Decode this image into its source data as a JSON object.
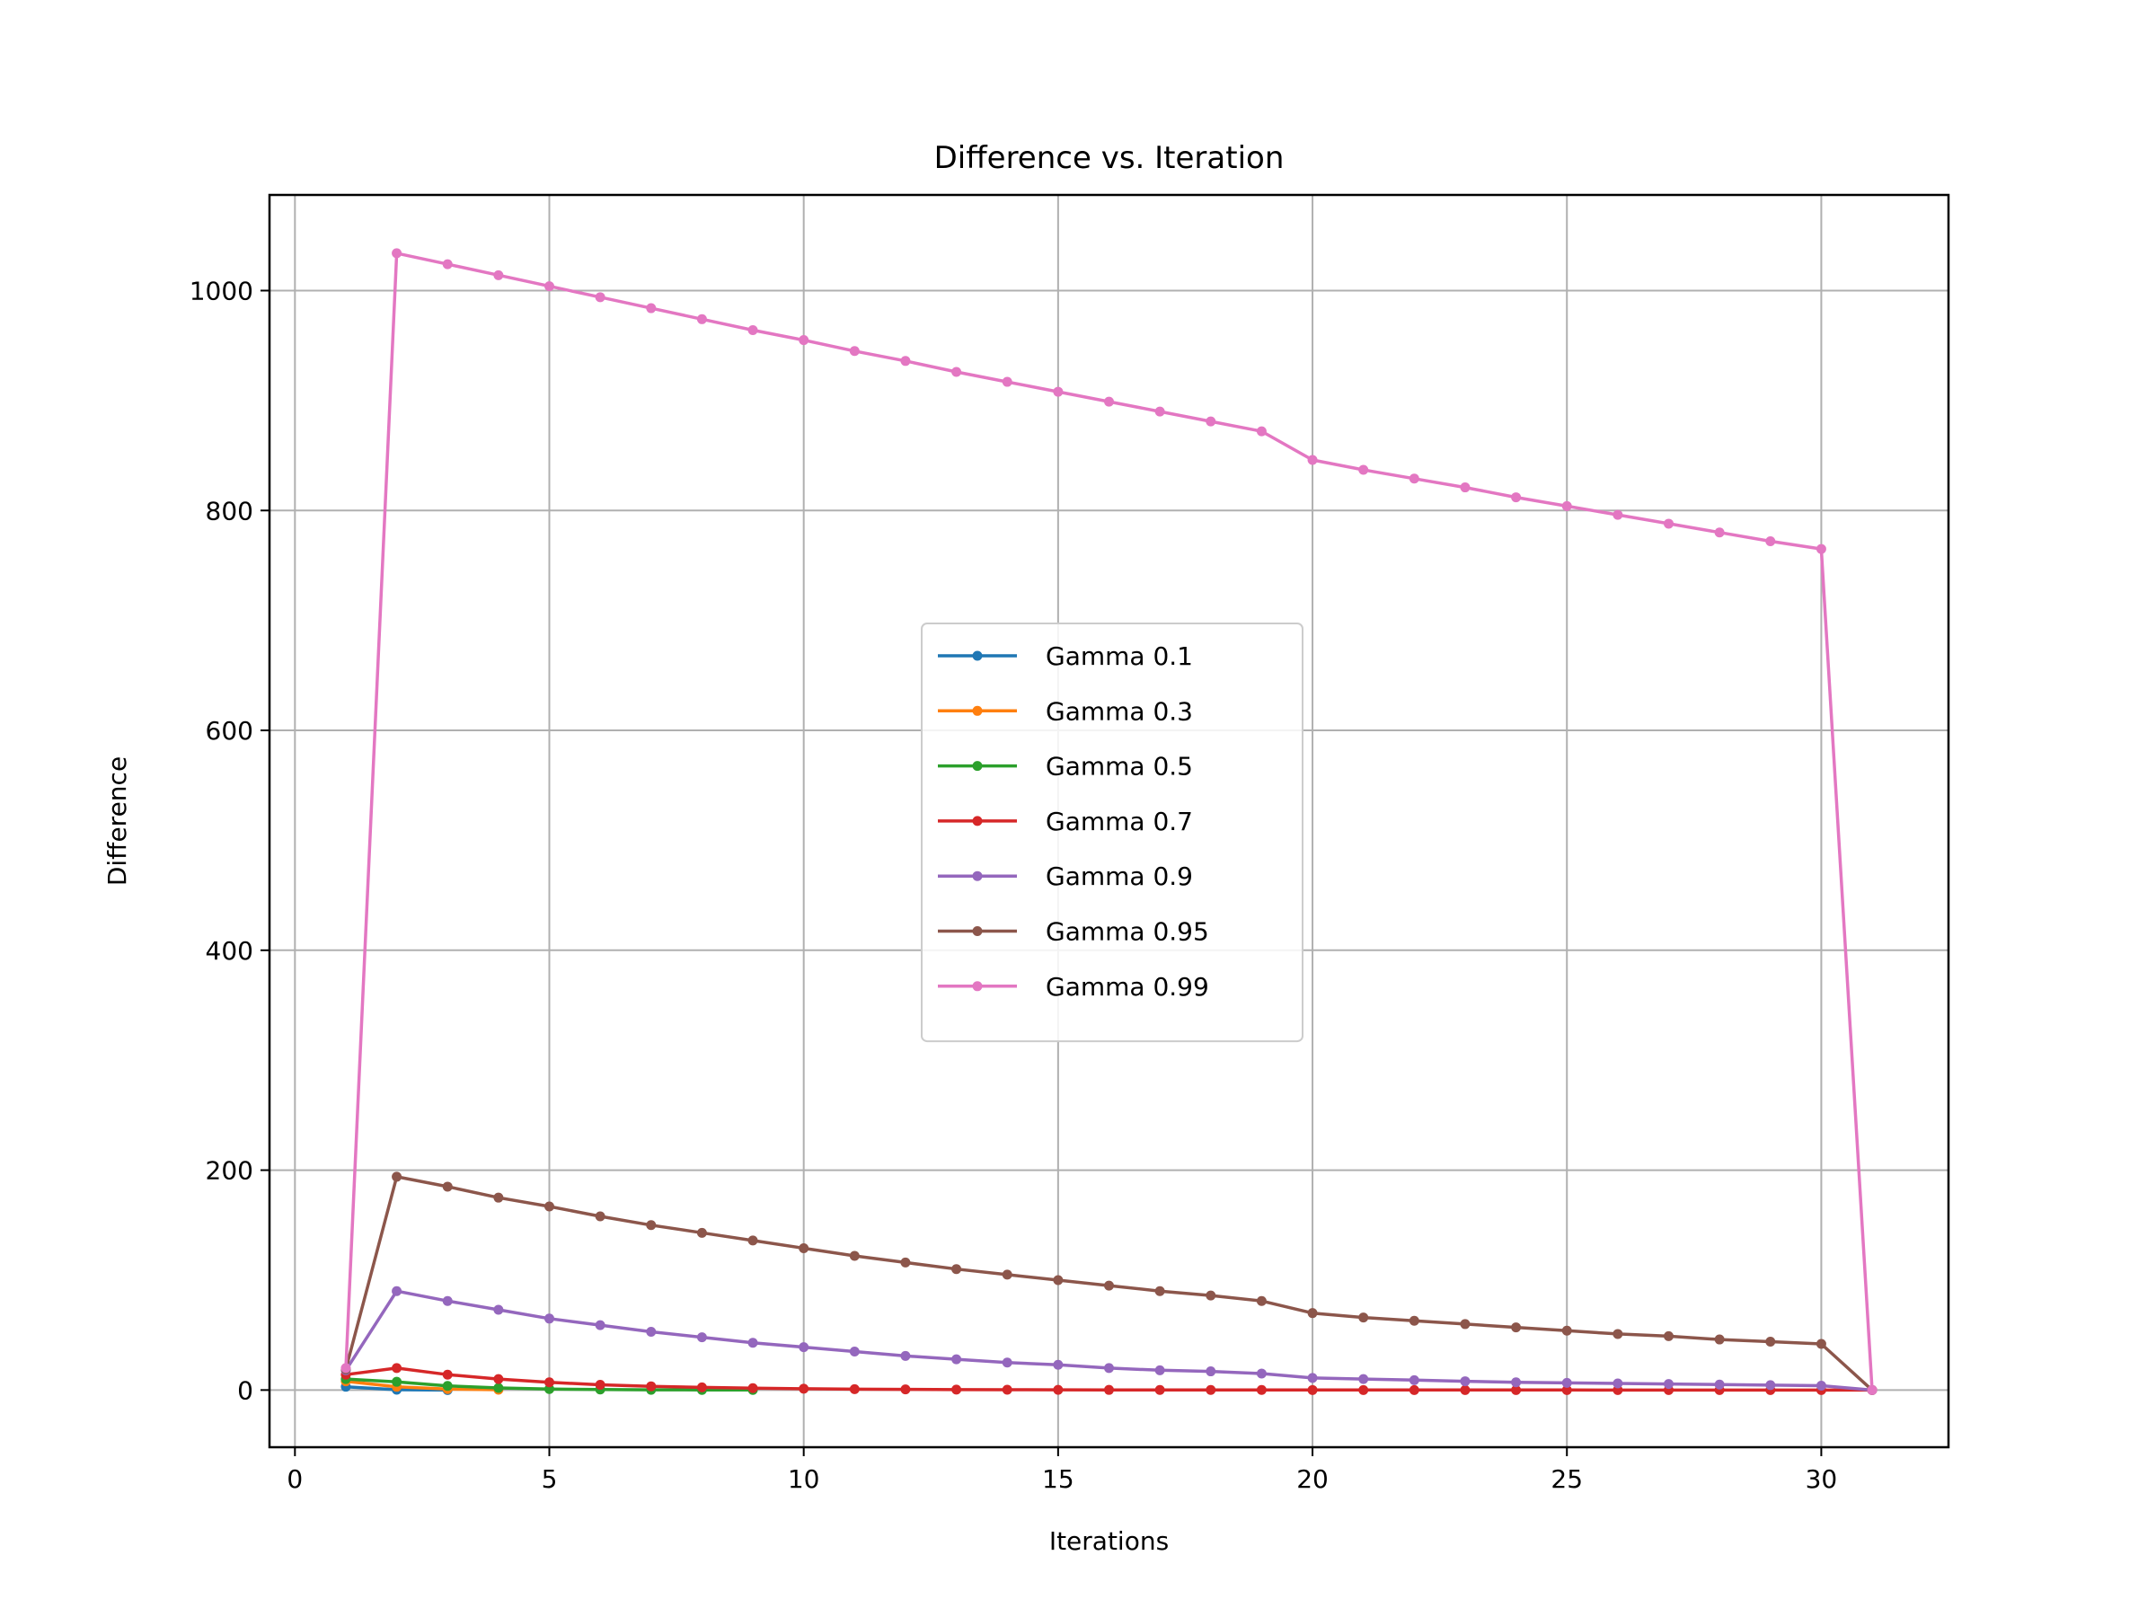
{
  "chart_data": {
    "type": "line",
    "title": "Difference vs. Iteration",
    "xlabel": "Iterations",
    "ylabel": "Difference",
    "xlim": [
      -0.5,
      32.5
    ],
    "ylim": [
      -52,
      1087
    ],
    "xticks": [
      0,
      5,
      10,
      15,
      20,
      25,
      30
    ],
    "yticks": [
      0,
      200,
      400,
      600,
      800,
      1000
    ],
    "grid": true,
    "legend_position": "center",
    "series": [
      {
        "name": "Gamma 0.1",
        "color": "#1f77b4",
        "x": [
          1,
          2,
          3
        ],
        "y": [
          3,
          0.3,
          0
        ]
      },
      {
        "name": "Gamma 0.3",
        "color": "#ff7f0e",
        "x": [
          1,
          2,
          3,
          4
        ],
        "y": [
          8,
          3,
          0.9,
          0.3
        ]
      },
      {
        "name": "Gamma 0.5",
        "color": "#2ca02c",
        "x": [
          1,
          2,
          3,
          4,
          5,
          6,
          7,
          8,
          9
        ],
        "y": [
          10,
          7.5,
          3.8,
          1.9,
          0.9,
          0.5,
          0.2,
          0.1,
          0.06
        ]
      },
      {
        "name": "Gamma 0.7",
        "color": "#d62728",
        "x": [
          1,
          2,
          3,
          4,
          5,
          6,
          7,
          8,
          9,
          10,
          11,
          12,
          13,
          14,
          15,
          16,
          17,
          18,
          19,
          20,
          21,
          22,
          23,
          24,
          25,
          26,
          27,
          28,
          29,
          30,
          31
        ],
        "y": [
          14,
          20,
          14,
          10,
          7,
          4.8,
          3.4,
          2.4,
          1.7,
          1.2,
          0.8,
          0.6,
          0.4,
          0.3,
          0.2,
          0.14,
          0.1,
          0.07,
          0.05,
          0.03,
          0.02,
          0.02,
          0.01,
          0.01,
          0.01,
          0,
          0,
          0,
          0,
          0,
          0
        ]
      },
      {
        "name": "Gamma 0.9",
        "color": "#9467bd",
        "x": [
          1,
          2,
          3,
          4,
          5,
          6,
          7,
          8,
          9,
          10,
          11,
          12,
          13,
          14,
          15,
          16,
          17,
          18,
          19,
          20,
          21,
          22,
          23,
          24,
          25,
          26,
          27,
          28,
          29,
          30,
          31
        ],
        "y": [
          18,
          90,
          81,
          73,
          65,
          59,
          53,
          48,
          43,
          39,
          35,
          31,
          28,
          25,
          23,
          20,
          18,
          17,
          15,
          11,
          10,
          9,
          8,
          7,
          6.5,
          6,
          5.5,
          5,
          4.5,
          4,
          0
        ]
      },
      {
        "name": "Gamma 0.95",
        "color": "#8c564b",
        "x": [
          1,
          2,
          3,
          4,
          5,
          6,
          7,
          8,
          9,
          10,
          11,
          12,
          13,
          14,
          15,
          16,
          17,
          18,
          19,
          20,
          21,
          22,
          23,
          24,
          25,
          26,
          27,
          28,
          29,
          30,
          31
        ],
        "y": [
          19,
          194,
          185,
          175,
          167,
          158,
          150,
          143,
          136,
          129,
          122,
          116,
          110,
          105,
          100,
          95,
          90,
          86,
          81,
          70,
          66,
          63,
          60,
          57,
          54,
          51,
          49,
          46,
          44,
          42,
          0
        ]
      },
      {
        "name": "Gamma 0.99",
        "color": "#e377c2",
        "x": [
          1,
          2,
          3,
          4,
          5,
          6,
          7,
          8,
          9,
          10,
          11,
          12,
          13,
          14,
          15,
          16,
          17,
          18,
          19,
          20,
          21,
          22,
          23,
          24,
          25,
          26,
          27,
          28,
          29,
          30,
          31
        ],
        "y": [
          20,
          1034,
          1024,
          1014,
          1004,
          994,
          984,
          974,
          964,
          955,
          945,
          936,
          926,
          917,
          908,
          899,
          890,
          881,
          872,
          846,
          837,
          829,
          821,
          812,
          804,
          796,
          788,
          780,
          772,
          765,
          0
        ]
      }
    ]
  }
}
